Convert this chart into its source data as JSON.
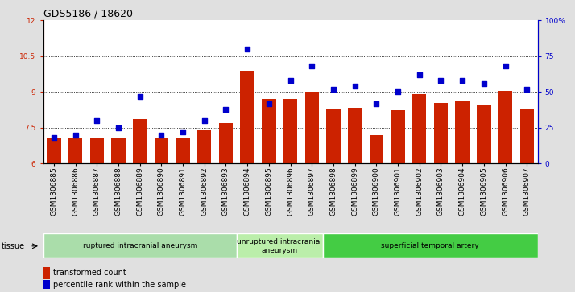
{
  "title": "GDS5186 / 18620",
  "samples": [
    "GSM1306885",
    "GSM1306886",
    "GSM1306887",
    "GSM1306888",
    "GSM1306889",
    "GSM1306890",
    "GSM1306891",
    "GSM1306892",
    "GSM1306893",
    "GSM1306894",
    "GSM1306895",
    "GSM1306896",
    "GSM1306897",
    "GSM1306898",
    "GSM1306899",
    "GSM1306900",
    "GSM1306901",
    "GSM1306902",
    "GSM1306903",
    "GSM1306904",
    "GSM1306905",
    "GSM1306906",
    "GSM1306907"
  ],
  "bar_values": [
    7.05,
    7.1,
    7.1,
    7.05,
    7.85,
    7.05,
    7.05,
    7.4,
    7.7,
    9.9,
    8.7,
    8.7,
    9.0,
    8.3,
    8.35,
    7.2,
    8.25,
    8.9,
    8.55,
    8.6,
    8.45,
    9.05,
    8.3
  ],
  "dot_values": [
    18,
    20,
    30,
    25,
    47,
    20,
    22,
    30,
    38,
    80,
    42,
    58,
    68,
    52,
    54,
    42,
    50,
    62,
    58,
    58,
    56,
    68,
    52
  ],
  "bar_bottom": 6.0,
  "ylim_left": [
    6.0,
    12.0
  ],
  "ylim_right": [
    0,
    100
  ],
  "yticks_left": [
    6,
    7.5,
    9,
    10.5,
    12
  ],
  "ytick_labels_left": [
    "6",
    "7.5",
    "9",
    "10.5",
    "12"
  ],
  "yticks_right": [
    0,
    25,
    50,
    75,
    100
  ],
  "ytick_labels_right": [
    "0",
    "25",
    "50",
    "75",
    "100%"
  ],
  "hlines": [
    7.5,
    9.0,
    10.5
  ],
  "bar_color": "#cc2200",
  "dot_color": "#0000cc",
  "groups": [
    {
      "label": "ruptured intracranial aneurysm",
      "start": 0,
      "end": 9
    },
    {
      "label": "unruptured intracranial\naneurysm",
      "start": 9,
      "end": 13
    },
    {
      "label": "superficial temporal artery",
      "start": 13,
      "end": 23
    }
  ],
  "group_colors": [
    "#aaddaa",
    "#bbeeaa",
    "#44cc44"
  ],
  "tissue_label": "tissue",
  "legend_bar_label": "transformed count",
  "legend_dot_label": "percentile rank within the sample",
  "bg_color": "#e0e0e0",
  "plot_bg": "#ffffff",
  "title_fontsize": 9,
  "tick_fontsize": 6.5,
  "label_fontsize": 7
}
